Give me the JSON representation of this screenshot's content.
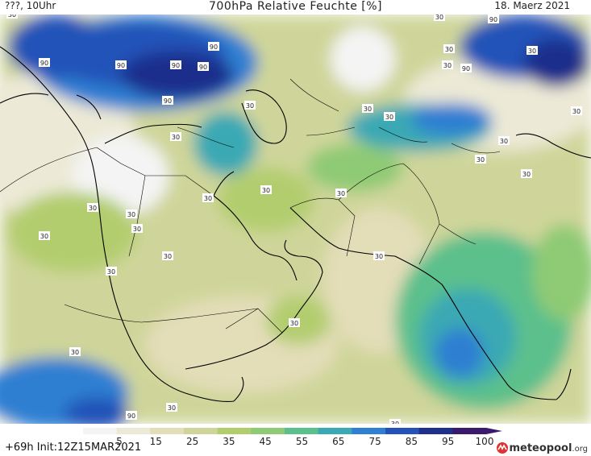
{
  "header": {
    "left": "???, 10Uhr",
    "title": "700hPa Relative Feuchte [%]",
    "date": "18. Maerz 2021"
  },
  "footer": {
    "run": "+69h  Init:12Z15MAR2021",
    "brand_main": "meteopool",
    "brand_suffix": ".org"
  },
  "legend": {
    "ticks": [
      "5",
      "15",
      "25",
      "35",
      "45",
      "55",
      "65",
      "75",
      "85",
      "95",
      "100"
    ],
    "colors": [
      "#f4f4f4",
      "#ece9d6",
      "#e3ddb8",
      "#cfd59a",
      "#b2cd6e",
      "#8fca74",
      "#5cc08c",
      "#3aa9b4",
      "#2f7fd2",
      "#2452b8",
      "#1e2f8c",
      "#3b1a6e"
    ]
  },
  "map": {
    "contour_labels": [
      "90",
      "90",
      "90",
      "90",
      "90",
      "90",
      "90",
      "90",
      "90",
      "30",
      "30",
      "30",
      "30",
      "30",
      "30",
      "30",
      "30",
      "30",
      "30",
      "30",
      "30",
      "30",
      "30",
      "30",
      "30",
      "30",
      "30",
      "30",
      "30",
      "30",
      "30",
      "30",
      "30",
      "30",
      "30",
      "30"
    ]
  }
}
